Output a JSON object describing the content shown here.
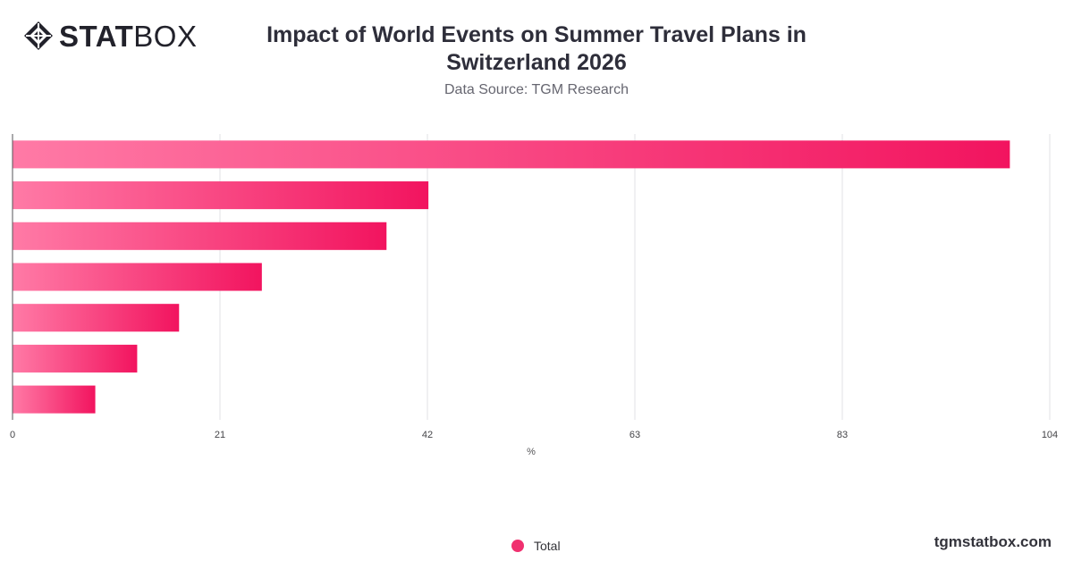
{
  "brand": {
    "logo_bold": "STAT",
    "logo_light": "BOX",
    "logo_icon": "diamond-grid-icon",
    "url": "tgmstatbox.com"
  },
  "chart_data": {
    "type": "bar",
    "orientation": "horizontal",
    "title": "Impact of World Events on Summer Travel Plans in Switzerland 2026",
    "subtitle": "Data Source: TGM Research",
    "xlabel": "%",
    "ylabel": "",
    "xlim": [
      0,
      104
    ],
    "x_ticks": [
      "0",
      "21",
      "42",
      "63",
      "83",
      "104"
    ],
    "x_tick_values": [
      0,
      20.8,
      41.6,
      62.4,
      83.2,
      104
    ],
    "categories": [
      "",
      "",
      "",
      "",
      "",
      "",
      ""
    ],
    "series": [
      {
        "name": "Total",
        "values": [
          100,
          41.7,
          37.5,
          25,
          16.7,
          12.5,
          8.3
        ]
      }
    ],
    "grid": true,
    "legend_position": "bottom",
    "colors": {
      "bar_start": "#ff7aa6",
      "bar_end": "#f2145f",
      "legend_dot": "#f0306f",
      "grid": "#e2e2e6"
    }
  }
}
